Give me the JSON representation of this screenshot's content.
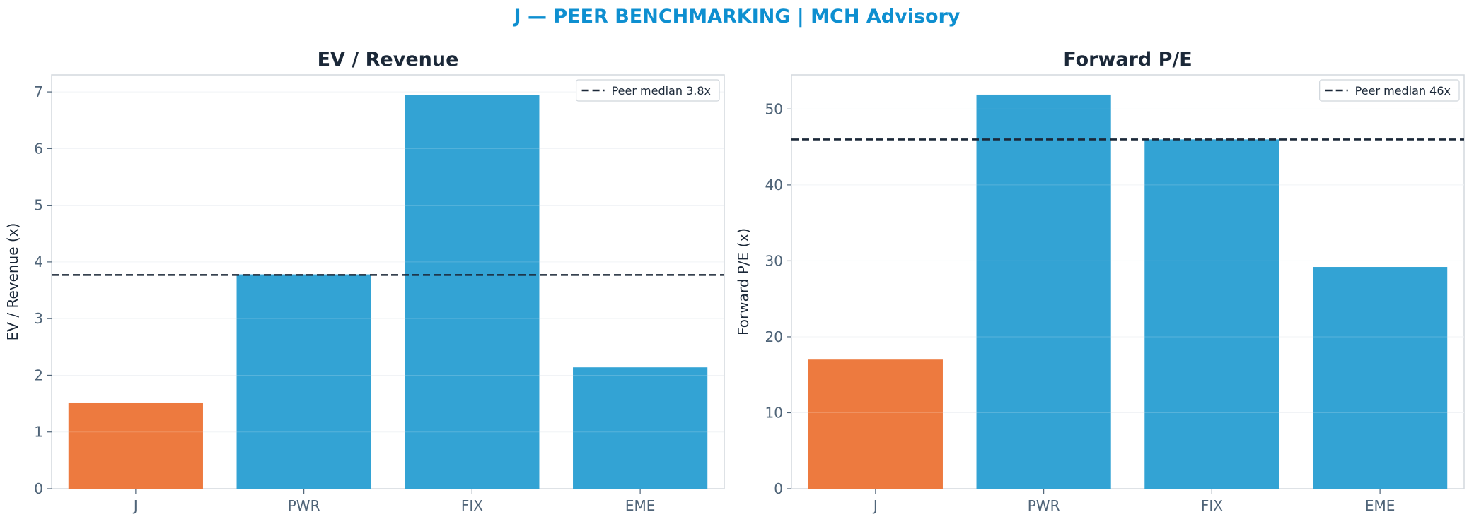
{
  "title": "J — PEER BENCHMARKING | MCH Advisory",
  "colors": {
    "title": "#0e8fd0",
    "target_bar": "#ed7a3f",
    "peer_bar": "#33a3d4",
    "median_line": "#1b2838",
    "axis_text": "#4f6478",
    "label_text": "#1b2838",
    "frame": "#d3d8de",
    "grid": "#eef1f4"
  },
  "chart_data": [
    {
      "type": "bar",
      "title": "EV / Revenue",
      "ylabel": "EV / Revenue (x)",
      "xlabel": "",
      "categories": [
        "J",
        "PWR",
        "FIX",
        "EME"
      ],
      "values": [
        1.52,
        3.78,
        6.95,
        2.14
      ],
      "highlight": "J",
      "ylim": [
        0,
        7.3
      ],
      "yticks": [
        0,
        1,
        2,
        3,
        4,
        5,
        6,
        7
      ],
      "ytick_labels": [
        "0",
        "1",
        "2",
        "3",
        "4",
        "5",
        "6",
        "7"
      ],
      "grid": true,
      "reference_line": {
        "value": 3.77,
        "style": "dashed",
        "label": "Peer median 3.8x"
      },
      "legend_position": "upper right"
    },
    {
      "type": "bar",
      "title": "Forward P/E",
      "ylabel": "Forward P/E (x)",
      "xlabel": "",
      "categories": [
        "J",
        "PWR",
        "FIX",
        "EME"
      ],
      "values": [
        17.0,
        51.9,
        46.0,
        29.2
      ],
      "highlight": "J",
      "ylim": [
        0,
        54.5
      ],
      "yticks": [
        0,
        10,
        20,
        30,
        40,
        50
      ],
      "ytick_labels": [
        "0",
        "10",
        "20",
        "30",
        "40",
        "50"
      ],
      "grid": true,
      "reference_line": {
        "value": 46.0,
        "style": "dashed",
        "label": "Peer median 46x"
      },
      "legend_position": "upper right"
    }
  ]
}
